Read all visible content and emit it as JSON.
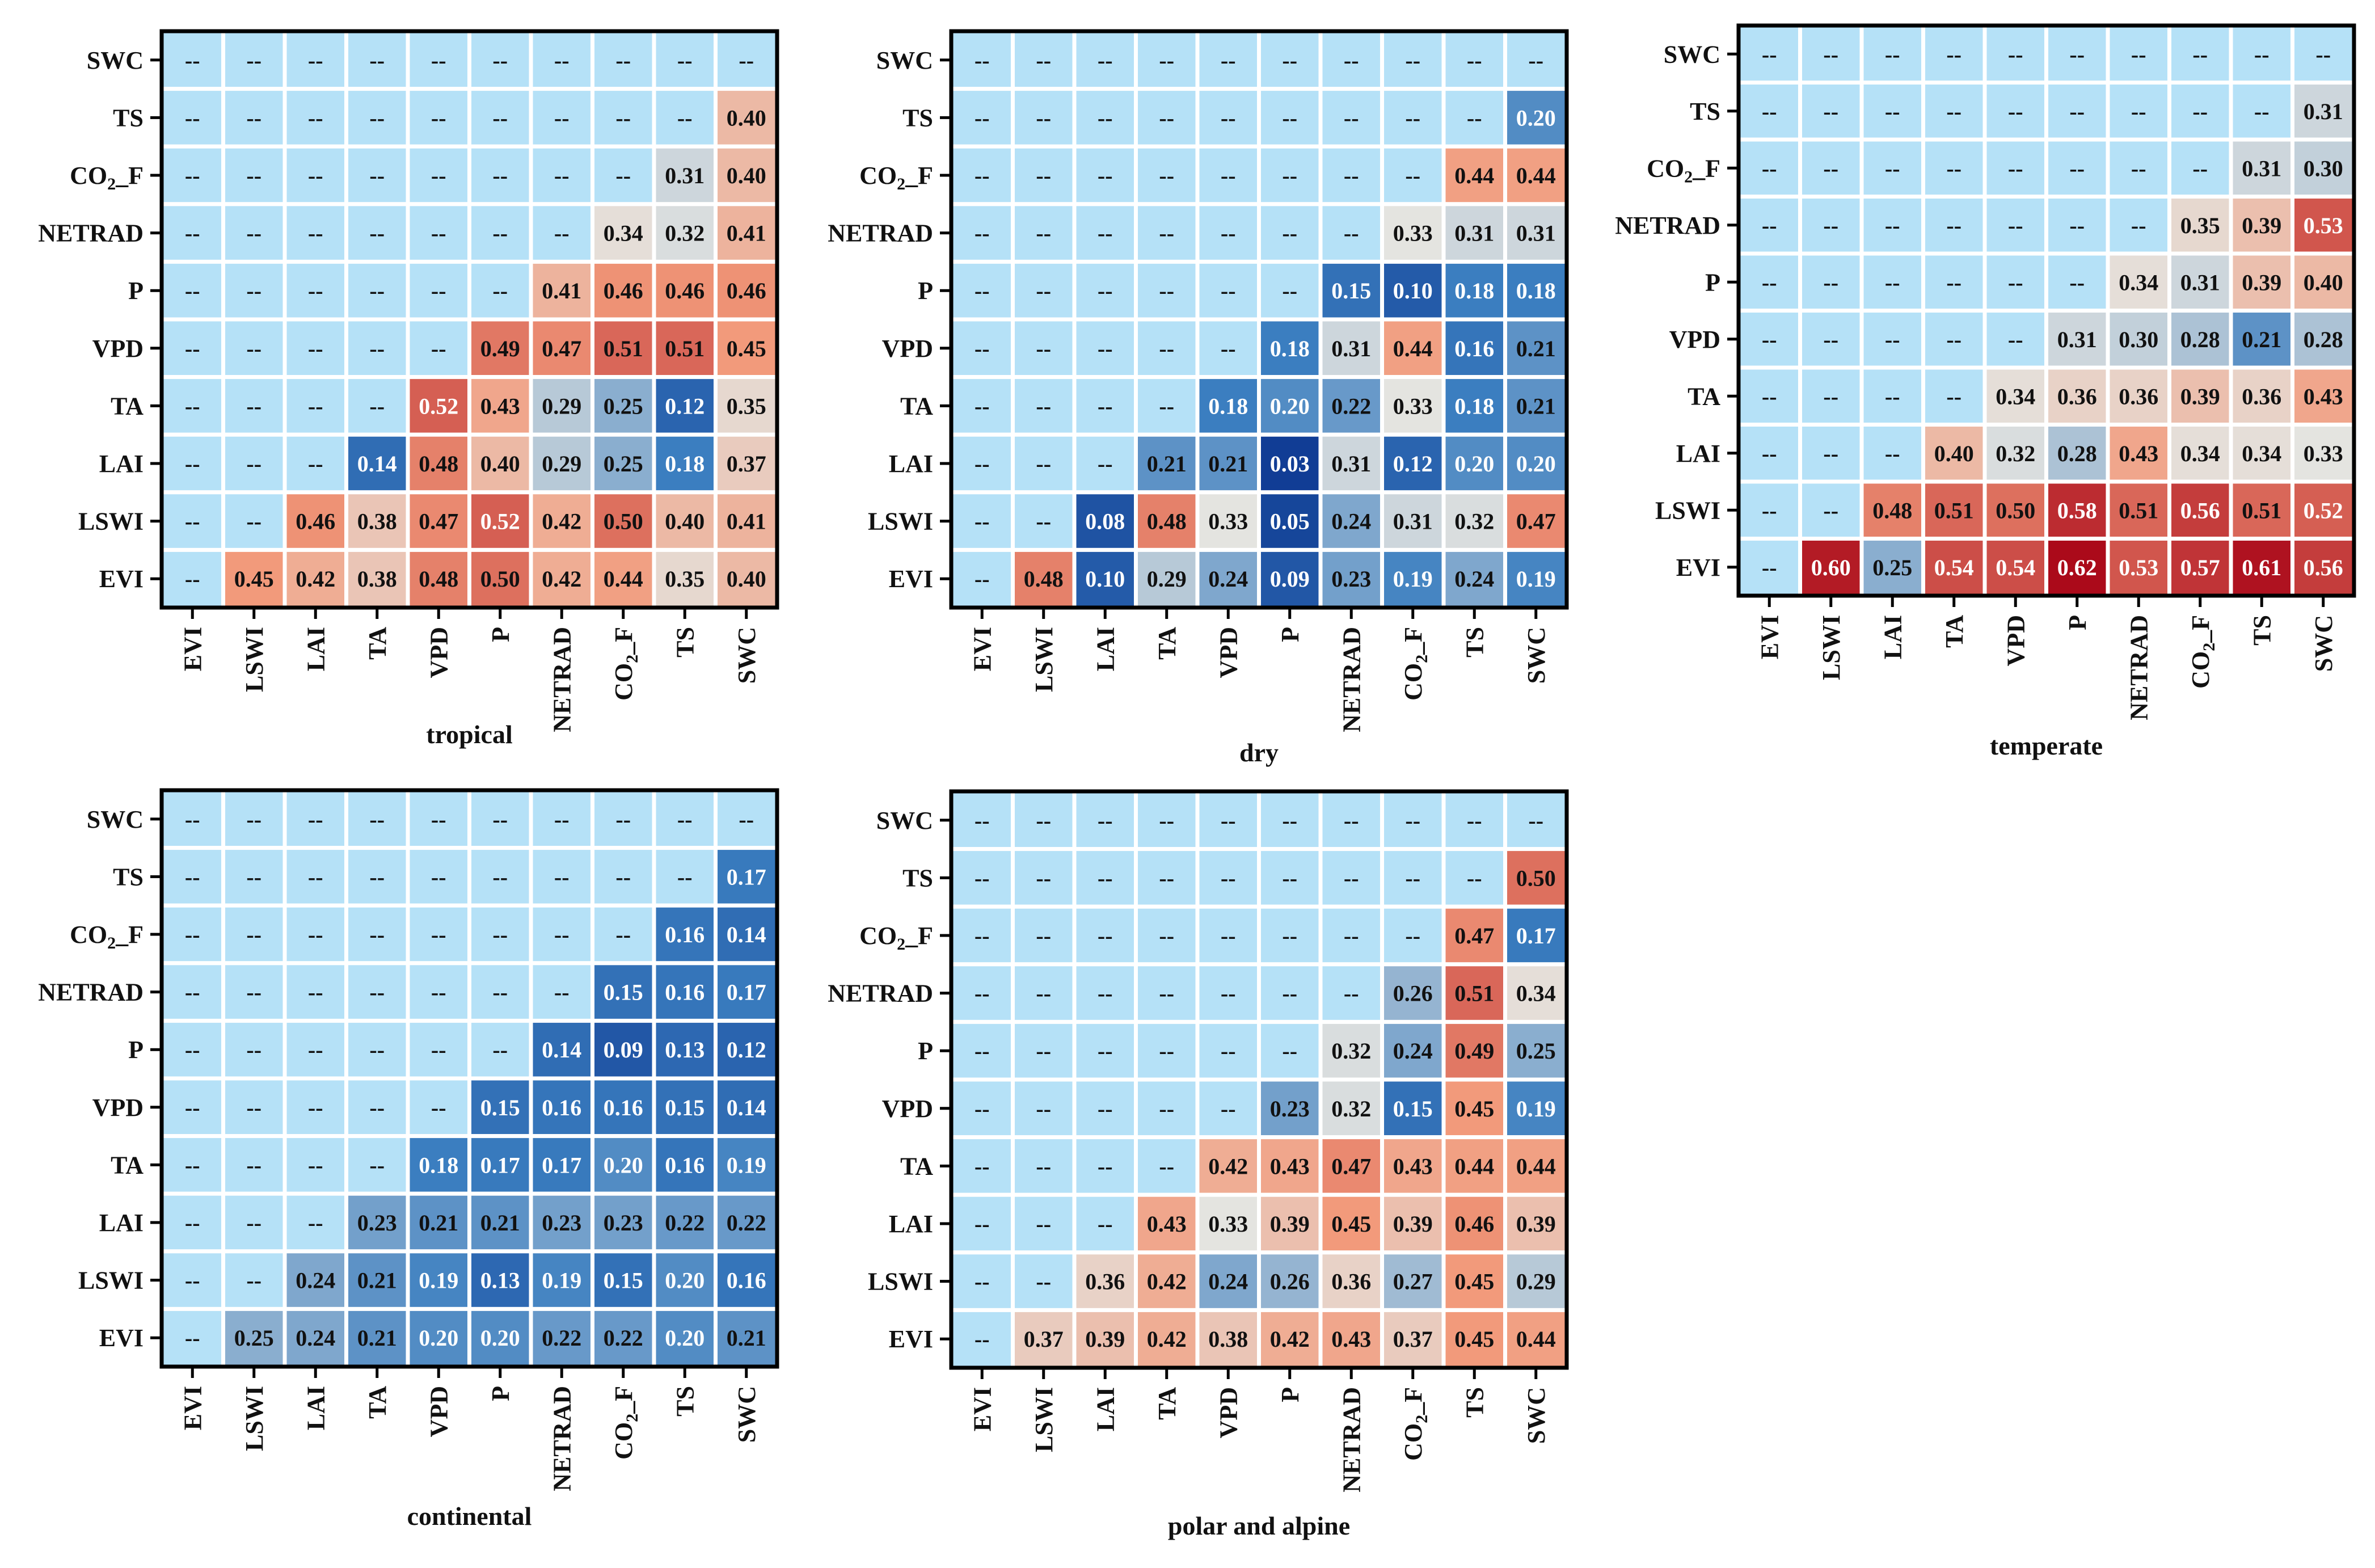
{
  "figure": {
    "empty_marker": "--",
    "colors": {
      "empty": "#b5e1f7",
      "scale_low": "#08308c",
      "scale_mid_low": "#3b7ec0",
      "scale_mid": "#e4e4e0",
      "scale_mid_high": "#f29a7b",
      "scale_high": "#ab0a1a",
      "frame": "#000000",
      "grid": "#ffffff"
    }
  },
  "chart_data": [
    {
      "type": "heatmap",
      "title": "tropical",
      "row_labels": [
        "SWC",
        "TS",
        "CO2_F",
        "NETRAD",
        "P",
        "VPD",
        "TA",
        "LAI",
        "LSWI",
        "EVI"
      ],
      "col_labels": [
        "EVI",
        "LSWI",
        "LAI",
        "TA",
        "VPD",
        "P",
        "NETRAD",
        "CO2_F",
        "TS",
        "SWC"
      ],
      "values": [
        [
          null,
          null,
          null,
          null,
          null,
          null,
          null,
          null,
          null,
          null
        ],
        [
          null,
          null,
          null,
          null,
          null,
          null,
          null,
          null,
          null,
          0.4
        ],
        [
          null,
          null,
          null,
          null,
          null,
          null,
          null,
          null,
          0.31,
          0.4
        ],
        [
          null,
          null,
          null,
          null,
          null,
          null,
          null,
          0.34,
          0.32,
          0.41
        ],
        [
          null,
          null,
          null,
          null,
          null,
          null,
          0.41,
          0.46,
          0.46,
          0.46
        ],
        [
          null,
          null,
          null,
          null,
          null,
          0.49,
          0.47,
          0.51,
          0.51,
          0.45
        ],
        [
          null,
          null,
          null,
          null,
          0.52,
          0.43,
          0.29,
          0.25,
          0.12,
          0.35
        ],
        [
          null,
          null,
          null,
          0.14,
          0.48,
          0.4,
          0.29,
          0.25,
          0.18,
          0.37
        ],
        [
          null,
          null,
          0.46,
          0.38,
          0.47,
          0.52,
          0.42,
          0.5,
          0.4,
          0.41
        ],
        [
          null,
          0.45,
          0.42,
          0.38,
          0.48,
          0.5,
          0.42,
          0.44,
          0.35,
          0.4
        ]
      ],
      "color_range": [
        0.0,
        0.62
      ]
    },
    {
      "type": "heatmap",
      "title": "dry",
      "row_labels": [
        "SWC",
        "TS",
        "CO2_F",
        "NETRAD",
        "P",
        "VPD",
        "TA",
        "LAI",
        "LSWI",
        "EVI"
      ],
      "col_labels": [
        "EVI",
        "LSWI",
        "LAI",
        "TA",
        "VPD",
        "P",
        "NETRAD",
        "CO2_F",
        "TS",
        "SWC"
      ],
      "values": [
        [
          null,
          null,
          null,
          null,
          null,
          null,
          null,
          null,
          null,
          null
        ],
        [
          null,
          null,
          null,
          null,
          null,
          null,
          null,
          null,
          null,
          0.2
        ],
        [
          null,
          null,
          null,
          null,
          null,
          null,
          null,
          null,
          0.44,
          0.44
        ],
        [
          null,
          null,
          null,
          null,
          null,
          null,
          null,
          0.33,
          0.31,
          0.31
        ],
        [
          null,
          null,
          null,
          null,
          null,
          null,
          0.15,
          0.1,
          0.18,
          0.18
        ],
        [
          null,
          null,
          null,
          null,
          null,
          0.18,
          0.31,
          0.44,
          0.16,
          0.21
        ],
        [
          null,
          null,
          null,
          null,
          0.18,
          0.2,
          0.22,
          0.33,
          0.18,
          0.21
        ],
        [
          null,
          null,
          null,
          0.21,
          0.21,
          0.03,
          0.31,
          0.12,
          0.2,
          0.2
        ],
        [
          null,
          null,
          0.08,
          0.48,
          0.33,
          0.05,
          0.24,
          0.31,
          0.32,
          0.47
        ],
        [
          null,
          0.48,
          0.1,
          0.29,
          0.24,
          0.09,
          0.23,
          0.19,
          0.24,
          0.19
        ]
      ],
      "color_range": [
        0.0,
        0.62
      ]
    },
    {
      "type": "heatmap",
      "title": "temperate",
      "row_labels": [
        "SWC",
        "TS",
        "CO2_F",
        "NETRAD",
        "P",
        "VPD",
        "TA",
        "LAI",
        "LSWI",
        "EVI"
      ],
      "col_labels": [
        "EVI",
        "LSWI",
        "LAI",
        "TA",
        "VPD",
        "P",
        "NETRAD",
        "CO2_F",
        "TS",
        "SWC"
      ],
      "values": [
        [
          null,
          null,
          null,
          null,
          null,
          null,
          null,
          null,
          null,
          null
        ],
        [
          null,
          null,
          null,
          null,
          null,
          null,
          null,
          null,
          null,
          0.31
        ],
        [
          null,
          null,
          null,
          null,
          null,
          null,
          null,
          null,
          0.31,
          0.3
        ],
        [
          null,
          null,
          null,
          null,
          null,
          null,
          null,
          0.35,
          0.39,
          0.53
        ],
        [
          null,
          null,
          null,
          null,
          null,
          null,
          0.34,
          0.31,
          0.39,
          0.4
        ],
        [
          null,
          null,
          null,
          null,
          null,
          0.31,
          0.3,
          0.28,
          0.21,
          0.28
        ],
        [
          null,
          null,
          null,
          null,
          0.34,
          0.36,
          0.36,
          0.39,
          0.36,
          0.43
        ],
        [
          null,
          null,
          null,
          0.4,
          0.32,
          0.28,
          0.43,
          0.34,
          0.34,
          0.33
        ],
        [
          null,
          null,
          0.48,
          0.51,
          0.5,
          0.58,
          0.51,
          0.56,
          0.51,
          0.52
        ],
        [
          null,
          0.6,
          0.25,
          0.54,
          0.54,
          0.62,
          0.53,
          0.57,
          0.61,
          0.56
        ]
      ],
      "color_range": [
        0.0,
        0.62
      ]
    },
    {
      "type": "heatmap",
      "title": "continental",
      "row_labels": [
        "SWC",
        "TS",
        "CO2_F",
        "NETRAD",
        "P",
        "VPD",
        "TA",
        "LAI",
        "LSWI",
        "EVI"
      ],
      "col_labels": [
        "EVI",
        "LSWI",
        "LAI",
        "TA",
        "VPD",
        "P",
        "NETRAD",
        "CO2_F",
        "TS",
        "SWC"
      ],
      "values": [
        [
          null,
          null,
          null,
          null,
          null,
          null,
          null,
          null,
          null,
          null
        ],
        [
          null,
          null,
          null,
          null,
          null,
          null,
          null,
          null,
          null,
          0.17
        ],
        [
          null,
          null,
          null,
          null,
          null,
          null,
          null,
          null,
          0.16,
          0.14
        ],
        [
          null,
          null,
          null,
          null,
          null,
          null,
          null,
          0.15,
          0.16,
          0.17
        ],
        [
          null,
          null,
          null,
          null,
          null,
          null,
          0.14,
          0.09,
          0.13,
          0.12
        ],
        [
          null,
          null,
          null,
          null,
          null,
          0.15,
          0.16,
          0.16,
          0.15,
          0.14
        ],
        [
          null,
          null,
          null,
          null,
          0.18,
          0.17,
          0.17,
          0.2,
          0.16,
          0.19
        ],
        [
          null,
          null,
          null,
          0.23,
          0.21,
          0.21,
          0.23,
          0.23,
          0.22,
          0.22
        ],
        [
          null,
          null,
          0.24,
          0.21,
          0.19,
          0.13,
          0.19,
          0.15,
          0.2,
          0.16
        ],
        [
          null,
          0.25,
          0.24,
          0.21,
          0.2,
          0.2,
          0.22,
          0.22,
          0.2,
          0.21
        ]
      ],
      "color_range": [
        0.0,
        0.62
      ]
    },
    {
      "type": "heatmap",
      "title": "polar and alpine",
      "row_labels": [
        "SWC",
        "TS",
        "CO2_F",
        "NETRAD",
        "P",
        "VPD",
        "TA",
        "LAI",
        "LSWI",
        "EVI"
      ],
      "col_labels": [
        "EVI",
        "LSWI",
        "LAI",
        "TA",
        "VPD",
        "P",
        "NETRAD",
        "CO2_F",
        "TS",
        "SWC"
      ],
      "values": [
        [
          null,
          null,
          null,
          null,
          null,
          null,
          null,
          null,
          null,
          null
        ],
        [
          null,
          null,
          null,
          null,
          null,
          null,
          null,
          null,
          null,
          0.5
        ],
        [
          null,
          null,
          null,
          null,
          null,
          null,
          null,
          null,
          0.47,
          0.17
        ],
        [
          null,
          null,
          null,
          null,
          null,
          null,
          null,
          0.26,
          0.51,
          0.34
        ],
        [
          null,
          null,
          null,
          null,
          null,
          null,
          0.32,
          0.24,
          0.49,
          0.25
        ],
        [
          null,
          null,
          null,
          null,
          null,
          0.23,
          0.32,
          0.15,
          0.45,
          0.19
        ],
        [
          null,
          null,
          null,
          null,
          0.42,
          0.43,
          0.47,
          0.43,
          0.44,
          0.44
        ],
        [
          null,
          null,
          null,
          0.43,
          0.33,
          0.39,
          0.45,
          0.39,
          0.46,
          0.39
        ],
        [
          null,
          null,
          0.36,
          0.42,
          0.24,
          0.26,
          0.36,
          0.27,
          0.45,
          0.29
        ],
        [
          null,
          0.37,
          0.39,
          0.42,
          0.38,
          0.42,
          0.43,
          0.37,
          0.45,
          0.44
        ]
      ],
      "color_range": [
        0.0,
        0.62
      ]
    }
  ]
}
